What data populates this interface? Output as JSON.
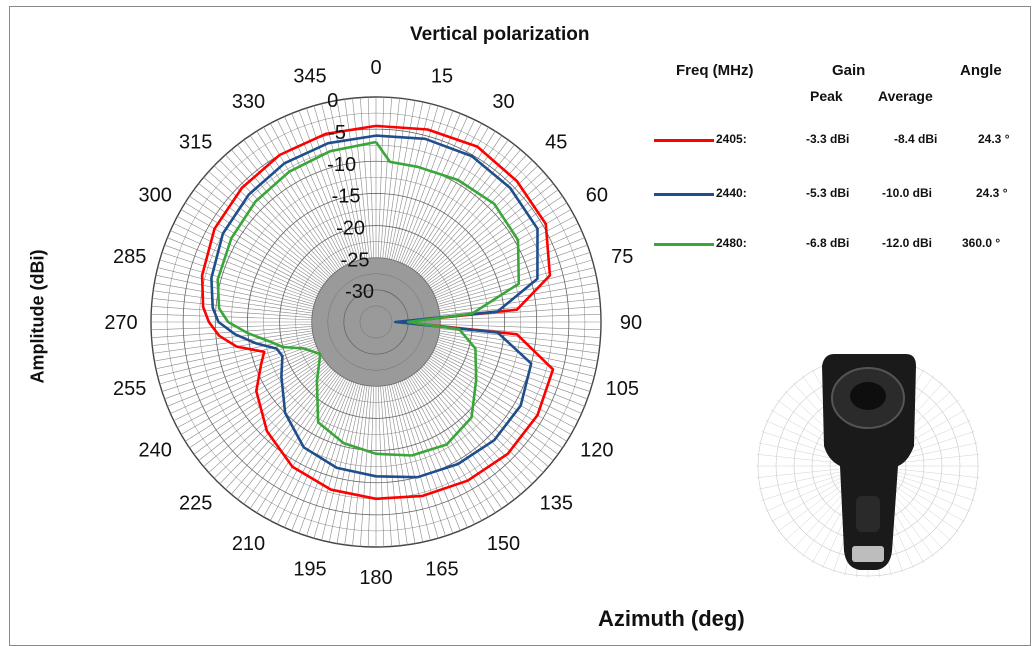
{
  "chart_data": {
    "type": "polar-line",
    "title": "Vertical polarization",
    "xlabel": "Azimuth (deg)",
    "ylabel": "Amplitude (dBi)",
    "angle_ticks": [
      "0",
      "15",
      "30",
      "45",
      "60",
      "75",
      "90",
      "105",
      "120",
      "135",
      "150",
      "165",
      "180",
      "195",
      "210",
      "225",
      "240",
      "255",
      "270",
      "285",
      "300",
      "315",
      "330",
      "345"
    ],
    "radial_ticks": [
      "0",
      "-5",
      "-10",
      "-15",
      "-20",
      "-25",
      "-30"
    ],
    "rlim": [
      -35,
      0
    ],
    "angle_direction": "clockwise",
    "zero_angle_position": "top",
    "grid": true,
    "legend": {
      "headers": {
        "freq": "Freq (MHz)",
        "gain": "Gain",
        "angle": "Angle",
        "peak": "Peak",
        "average": "Average"
      },
      "rows": [
        {
          "label": "2405:",
          "peak": "-3.3 dBi",
          "average": "-8.4 dBi",
          "angle": "24.3 °",
          "color": "#ff0000"
        },
        {
          "label": "2440:",
          "peak": "-5.3 dBi",
          "average": "-10.0 dBi",
          "angle": "24.3 °",
          "color": "#1f4e8c"
        },
        {
          "label": "2480:",
          "peak": "-6.8 dBi",
          "average": "-12.0 dBi",
          "angle": "360.0 °",
          "color": "#3aa63a"
        }
      ]
    },
    "series": [
      {
        "name": "2405",
        "color": "#ff0000",
        "angles": [
          0,
          15,
          30,
          45,
          60,
          75,
          85,
          90,
          95,
          105,
          120,
          135,
          150,
          165,
          180,
          195,
          210,
          225,
          240,
          250,
          255,
          260,
          265,
          270,
          275,
          285,
          300,
          315,
          330,
          345,
          360
        ],
        "values": [
          -4.5,
          -4.0,
          -3.5,
          -4.0,
          -4.5,
          -7.0,
          -13.0,
          -31.0,
          -13.0,
          -6.5,
          -6.0,
          -6.0,
          -6.5,
          -7.0,
          -7.5,
          -8.0,
          -9.0,
          -11.0,
          -13.5,
          -16.0,
          -17.0,
          -13.0,
          -10.5,
          -9.0,
          -8.0,
          -7.0,
          -6.0,
          -5.5,
          -5.0,
          -4.7,
          -4.5
        ]
      },
      {
        "name": "2440",
        "color": "#1f4e8c",
        "angles": [
          0,
          15,
          30,
          45,
          60,
          75,
          85,
          90,
          95,
          105,
          120,
          135,
          150,
          165,
          180,
          195,
          210,
          225,
          240,
          250,
          255,
          260,
          265,
          270,
          275,
          285,
          300,
          315,
          330,
          345,
          360
        ],
        "values": [
          -6.0,
          -5.5,
          -5.2,
          -5.5,
          -6.0,
          -9.0,
          -16.0,
          -32.0,
          -16.0,
          -10.0,
          -9.0,
          -9.0,
          -9.5,
          -10.0,
          -11.0,
          -11.5,
          -12.5,
          -15.0,
          -18.0,
          -19.5,
          -19.0,
          -16.0,
          -13.0,
          -10.5,
          -9.5,
          -8.5,
          -7.5,
          -7.0,
          -6.5,
          -6.2,
          -6.0
        ]
      },
      {
        "name": "2480",
        "color": "#3aa63a",
        "angles": [
          0,
          5,
          15,
          30,
          45,
          60,
          75,
          85,
          90,
          95,
          105,
          120,
          135,
          150,
          165,
          180,
          195,
          210,
          225,
          240,
          250,
          255,
          260,
          265,
          270,
          275,
          285,
          300,
          315,
          330,
          345,
          360
        ],
        "values": [
          -7.0,
          -10.0,
          -10.0,
          -9.5,
          -9.0,
          -9.5,
          -12.0,
          -20.0,
          -30.0,
          -22.0,
          -19.0,
          -17.0,
          -14.0,
          -13.0,
          -13.5,
          -14.5,
          -15.5,
          -17.0,
          -22.0,
          -25.0,
          -23.0,
          -20.0,
          -18.0,
          -15.0,
          -12.0,
          -10.5,
          -9.5,
          -9.0,
          -8.5,
          -8.0,
          -7.5,
          -7.0
        ]
      }
    ]
  },
  "inset": {
    "label": "device-photo"
  }
}
